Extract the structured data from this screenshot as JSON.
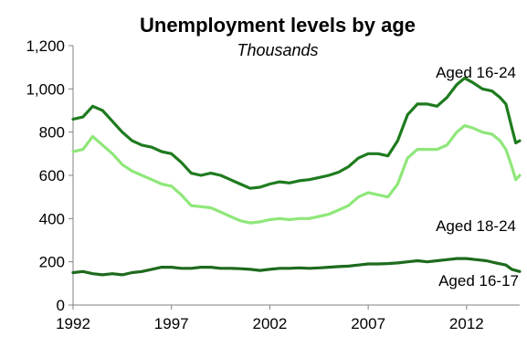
{
  "chart_data": {
    "type": "line",
    "title": "Unemployment levels by age",
    "subtitle": "Thousands",
    "xlabel": "",
    "ylabel": "",
    "xlim": [
      1992,
      2014.7
    ],
    "ylim": [
      0,
      1200
    ],
    "x_ticks": [
      1992,
      1997,
      2002,
      2007,
      2012
    ],
    "x_tick_labels": [
      "1992",
      "1997",
      "2002",
      "2007",
      "2012"
    ],
    "y_ticks": [
      0,
      200,
      400,
      600,
      800,
      1000,
      1200
    ],
    "y_tick_labels": [
      "0",
      "200",
      "400",
      "600",
      "800",
      "1,000",
      "1,200"
    ],
    "grid": false,
    "legend": "none",
    "series": [
      {
        "name": "Aged 16-24",
        "color": "#1e7b1e",
        "points": [
          [
            1992,
            860
          ],
          [
            1992.5,
            870
          ],
          [
            1993,
            920
          ],
          [
            1993.5,
            900
          ],
          [
            1994,
            850
          ],
          [
            1994.5,
            800
          ],
          [
            1995,
            760
          ],
          [
            1995.5,
            740
          ],
          [
            1996,
            730
          ],
          [
            1996.5,
            710
          ],
          [
            1997,
            700
          ],
          [
            1997.5,
            660
          ],
          [
            1998,
            610
          ],
          [
            1998.5,
            600
          ],
          [
            1999,
            610
          ],
          [
            1999.5,
            600
          ],
          [
            2000,
            580
          ],
          [
            2000.5,
            560
          ],
          [
            2001,
            540
          ],
          [
            2001.5,
            545
          ],
          [
            2002,
            560
          ],
          [
            2002.5,
            570
          ],
          [
            2003,
            565
          ],
          [
            2003.5,
            575
          ],
          [
            2004,
            580
          ],
          [
            2004.5,
            590
          ],
          [
            2005,
            600
          ],
          [
            2005.5,
            615
          ],
          [
            2006,
            640
          ],
          [
            2006.5,
            680
          ],
          [
            2007,
            700
          ],
          [
            2007.5,
            700
          ],
          [
            2008,
            690
          ],
          [
            2008.5,
            760
          ],
          [
            2009,
            880
          ],
          [
            2009.5,
            930
          ],
          [
            2010,
            930
          ],
          [
            2010.5,
            920
          ],
          [
            2011,
            960
          ],
          [
            2011.5,
            1020
          ],
          [
            2011.9,
            1050
          ],
          [
            2012.3,
            1030
          ],
          [
            2012.8,
            1000
          ],
          [
            2013.3,
            990
          ],
          [
            2013.7,
            960
          ],
          [
            2014,
            930
          ],
          [
            2014.3,
            820
          ],
          [
            2014.5,
            750
          ],
          [
            2014.7,
            760
          ]
        ]
      },
      {
        "name": "Aged 18-24",
        "color": "#8fe77a",
        "points": [
          [
            1992,
            710
          ],
          [
            1992.5,
            720
          ],
          [
            1993,
            780
          ],
          [
            1993.5,
            740
          ],
          [
            1994,
            700
          ],
          [
            1994.5,
            650
          ],
          [
            1995,
            620
          ],
          [
            1995.5,
            600
          ],
          [
            1996,
            580
          ],
          [
            1996.5,
            560
          ],
          [
            1997,
            550
          ],
          [
            1997.5,
            510
          ],
          [
            1998,
            460
          ],
          [
            1998.5,
            455
          ],
          [
            1999,
            450
          ],
          [
            1999.5,
            430
          ],
          [
            2000,
            410
          ],
          [
            2000.5,
            390
          ],
          [
            2001,
            380
          ],
          [
            2001.5,
            385
          ],
          [
            2002,
            395
          ],
          [
            2002.5,
            400
          ],
          [
            2003,
            395
          ],
          [
            2003.5,
            400
          ],
          [
            2004,
            400
          ],
          [
            2004.5,
            410
          ],
          [
            2005,
            420
          ],
          [
            2005.5,
            440
          ],
          [
            2006,
            460
          ],
          [
            2006.5,
            500
          ],
          [
            2007,
            520
          ],
          [
            2007.5,
            510
          ],
          [
            2008,
            500
          ],
          [
            2008.5,
            560
          ],
          [
            2009,
            680
          ],
          [
            2009.5,
            720
          ],
          [
            2010,
            720
          ],
          [
            2010.5,
            720
          ],
          [
            2011,
            740
          ],
          [
            2011.5,
            800
          ],
          [
            2011.9,
            830
          ],
          [
            2012.3,
            820
          ],
          [
            2012.8,
            800
          ],
          [
            2013.3,
            790
          ],
          [
            2013.7,
            760
          ],
          [
            2014,
            720
          ],
          [
            2014.3,
            640
          ],
          [
            2014.5,
            580
          ],
          [
            2014.7,
            600
          ]
        ]
      },
      {
        "name": "Aged 16-17",
        "color": "#1e6a1e",
        "points": [
          [
            1992,
            150
          ],
          [
            1992.5,
            155
          ],
          [
            1993,
            145
          ],
          [
            1993.5,
            140
          ],
          [
            1994,
            145
          ],
          [
            1994.5,
            140
          ],
          [
            1995,
            150
          ],
          [
            1995.5,
            155
          ],
          [
            1996,
            165
          ],
          [
            1996.5,
            175
          ],
          [
            1997,
            175
          ],
          [
            1997.5,
            170
          ],
          [
            1998,
            170
          ],
          [
            1998.5,
            175
          ],
          [
            1999,
            175
          ],
          [
            1999.5,
            170
          ],
          [
            2000,
            170
          ],
          [
            2000.5,
            168
          ],
          [
            2001,
            165
          ],
          [
            2001.5,
            160
          ],
          [
            2002,
            165
          ],
          [
            2002.5,
            170
          ],
          [
            2003,
            170
          ],
          [
            2003.5,
            172
          ],
          [
            2004,
            170
          ],
          [
            2004.5,
            172
          ],
          [
            2005,
            175
          ],
          [
            2005.5,
            178
          ],
          [
            2006,
            180
          ],
          [
            2006.5,
            185
          ],
          [
            2007,
            190
          ],
          [
            2007.5,
            190
          ],
          [
            2008,
            192
          ],
          [
            2008.5,
            195
          ],
          [
            2009,
            200
          ],
          [
            2009.5,
            205
          ],
          [
            2010,
            200
          ],
          [
            2010.5,
            205
          ],
          [
            2011,
            210
          ],
          [
            2011.5,
            215
          ],
          [
            2012,
            215
          ],
          [
            2012.5,
            210
          ],
          [
            2013,
            205
          ],
          [
            2013.5,
            195
          ],
          [
            2014,
            185
          ],
          [
            2014.3,
            165
          ],
          [
            2014.7,
            155
          ]
        ]
      }
    ]
  }
}
